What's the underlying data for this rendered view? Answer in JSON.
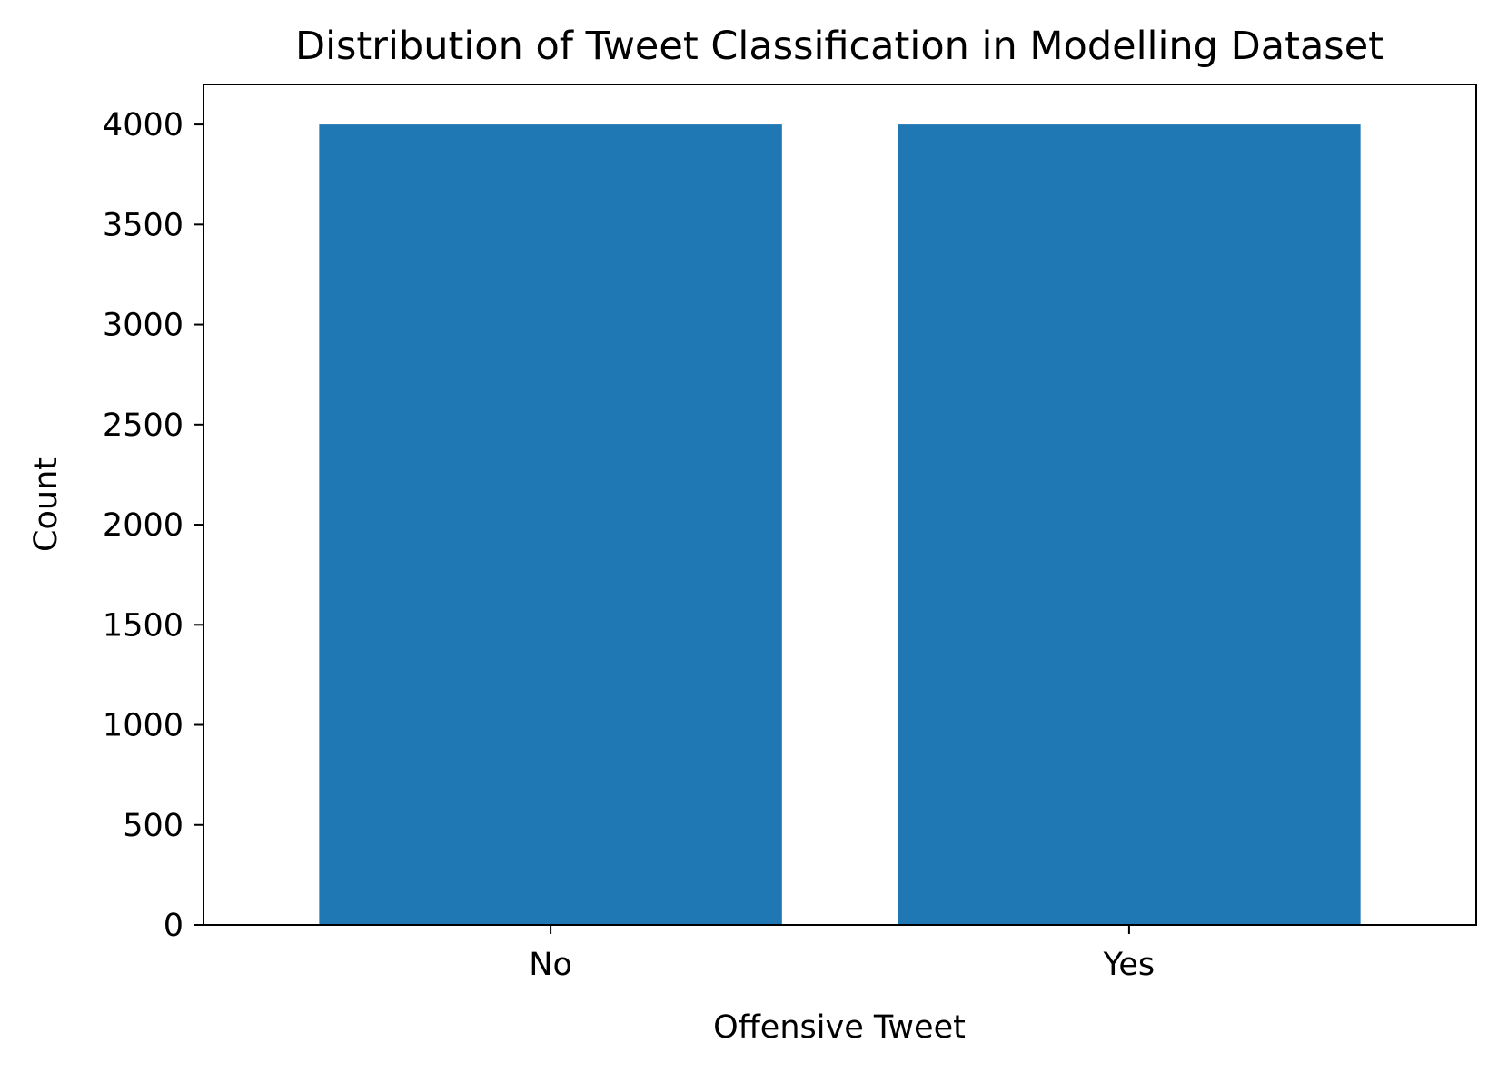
{
  "chart_data": {
    "type": "bar",
    "title": "Distribution of Tweet Classification in Modelling Dataset",
    "xlabel": "Offensive Tweet",
    "ylabel": "Count",
    "categories": [
      "No",
      "Yes"
    ],
    "values": [
      4000,
      4000
    ],
    "ylim": [
      0,
      4200
    ],
    "yticks": [
      0,
      500,
      1000,
      1500,
      2000,
      2500,
      3000,
      3500,
      4000
    ],
    "grid": false,
    "bar_color": "#1f77b4",
    "axis_color": "#000000"
  }
}
